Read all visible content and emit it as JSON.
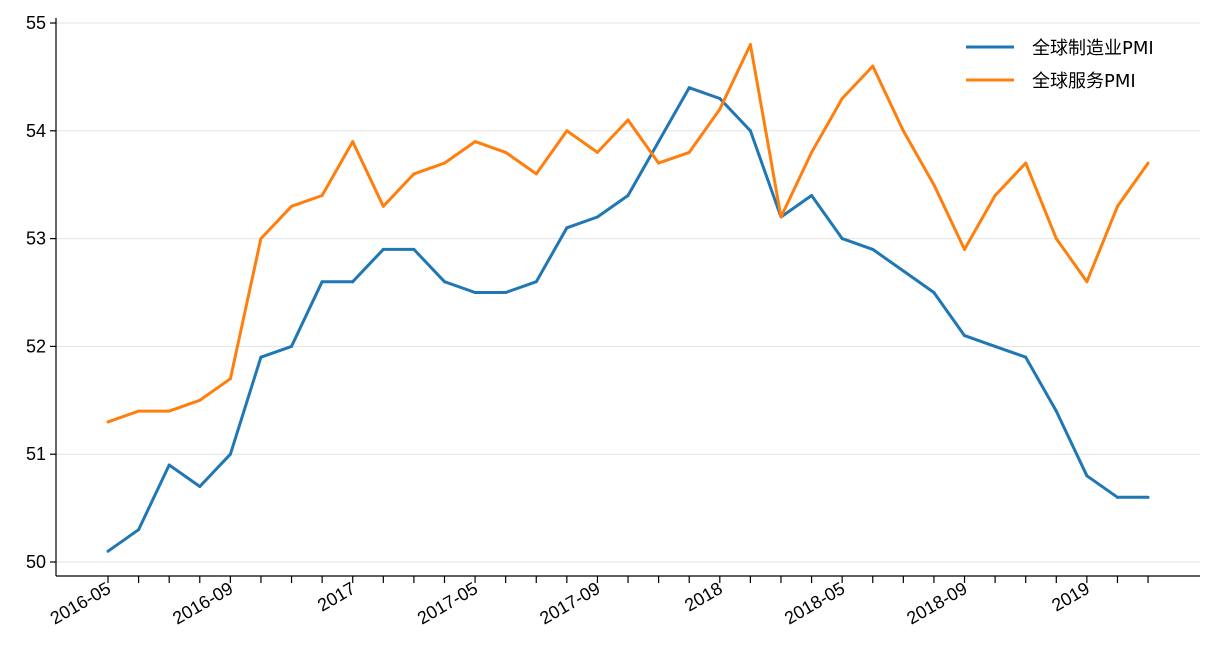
{
  "chart_data": {
    "type": "line",
    "x": [
      "2016-05",
      "2016-06",
      "2016-07",
      "2016-08",
      "2016-09",
      "2016-10",
      "2016-11",
      "2016-12",
      "2017-01",
      "2017-02",
      "2017-03",
      "2017-04",
      "2017-05",
      "2017-06",
      "2017-07",
      "2017-08",
      "2017-09",
      "2017-10",
      "2017-11",
      "2017-12",
      "2018-01",
      "2018-02",
      "2018-03",
      "2018-04",
      "2018-05",
      "2018-06",
      "2018-07",
      "2018-08",
      "2018-09",
      "2018-10",
      "2018-11",
      "2018-12",
      "2019-01",
      "2019-02",
      "2019-03"
    ],
    "x_tick_labels": [
      "2016-05",
      "2016-09",
      "2017",
      "2017-05",
      "2017-09",
      "2018",
      "2018-05",
      "2018-09",
      "2019"
    ],
    "series": [
      {
        "name": "全球制造业PMI",
        "color": "#1f77b4",
        "values": [
          50.1,
          50.3,
          50.9,
          50.7,
          51.0,
          51.9,
          52.0,
          52.6,
          52.6,
          52.9,
          52.9,
          52.6,
          52.5,
          52.5,
          52.6,
          53.1,
          53.2,
          53.4,
          53.9,
          54.4,
          54.3,
          54.0,
          53.2,
          53.4,
          53.0,
          52.9,
          52.7,
          52.5,
          52.1,
          52.0,
          51.9,
          51.4,
          50.8,
          50.6,
          50.6
        ]
      },
      {
        "name": "全球服务PMI",
        "color": "#ff7f0e",
        "values": [
          51.3,
          51.4,
          51.4,
          51.5,
          51.7,
          53.0,
          53.3,
          53.4,
          53.9,
          53.3,
          53.6,
          53.7,
          53.9,
          53.8,
          53.6,
          54.0,
          53.8,
          54.1,
          53.7,
          53.8,
          54.2,
          54.8,
          53.2,
          53.8,
          54.3,
          54.6,
          54.0,
          53.5,
          52.9,
          53.4,
          53.7,
          53.0,
          52.6,
          53.3,
          53.7
        ]
      }
    ],
    "y_ticks": [
      "50",
      "51",
      "52",
      "53",
      "54",
      "55"
    ],
    "ylim": [
      50,
      55
    ],
    "grid": "horizontal",
    "legend": "top-right"
  }
}
